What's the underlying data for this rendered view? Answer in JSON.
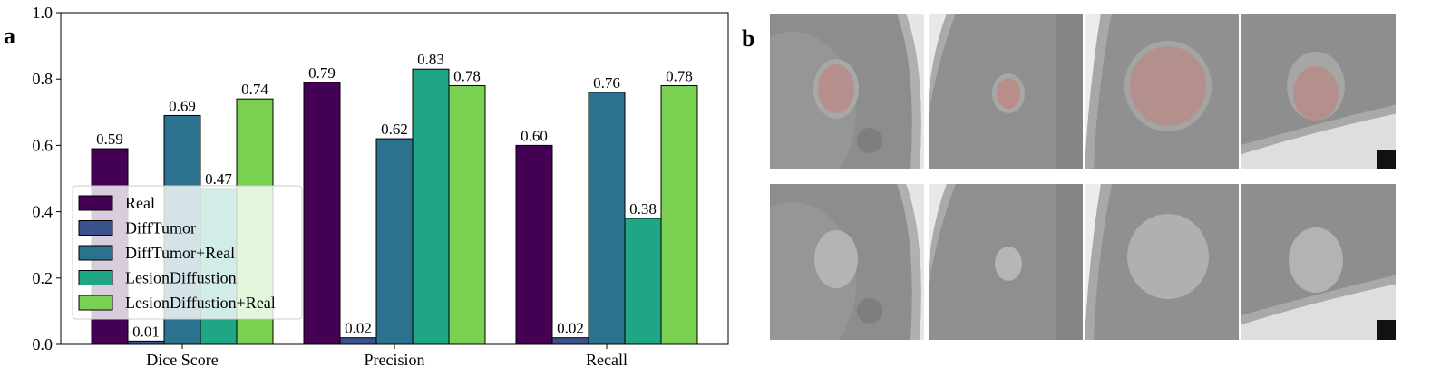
{
  "panel_labels": {
    "a": "a",
    "b": "b"
  },
  "chart_data": {
    "type": "bar",
    "categories": [
      "Dice Score",
      "Precision",
      "Recall"
    ],
    "series": [
      {
        "name": "Real",
        "color": "#440154",
        "values": [
          0.59,
          0.79,
          0.6
        ]
      },
      {
        "name": "DiffTumor",
        "color": "#3b518b",
        "values": [
          0.01,
          0.02,
          0.02
        ]
      },
      {
        "name": "DiffTumor+Real",
        "color": "#2c728e",
        "values": [
          0.69,
          0.62,
          0.76
        ]
      },
      {
        "name": "LesionDiffustion",
        "color": "#21a685",
        "values": [
          0.47,
          0.83,
          0.38
        ]
      },
      {
        "name": "LesionDiffustion+Real",
        "color": "#7ad151",
        "values": [
          0.74,
          0.78,
          0.78
        ]
      }
    ],
    "value_labels": [
      [
        "0.59",
        "0.79",
        "0.60"
      ],
      [
        "0.01",
        "0.02",
        "0.02"
      ],
      [
        "0.69",
        "0.62",
        "0.76"
      ],
      [
        "0.47",
        "0.83",
        "0.38"
      ],
      [
        "0.74",
        "0.78",
        "0.78"
      ]
    ],
    "title": "",
    "xlabel": "",
    "ylabel": "",
    "ylim": [
      0,
      1.0
    ],
    "yticks": [
      "0.0",
      "0.2",
      "0.4",
      "0.6",
      "0.8",
      "1.0"
    ],
    "legend_position": "lower-left",
    "grid": false
  },
  "ct_panel": {
    "rows": 2,
    "columns": 4,
    "top_row": "CT slices with lesion mask overlay (red)",
    "bottom_row": "CT slices without overlay"
  }
}
